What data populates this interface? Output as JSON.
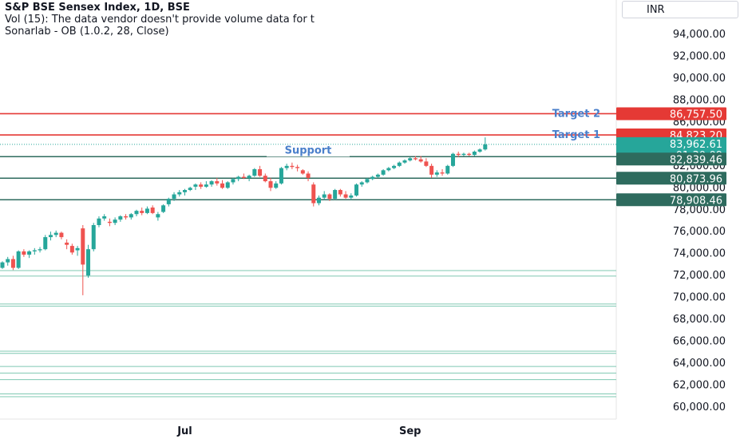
{
  "legend": {
    "title": "S&P BSE Sensex Index, 1D, BSE",
    "volume": "Vol (15): The data vendor doesn't provide volume data for t",
    "indicator": "Sonarlab - OB (1.0.2, 28, Close)"
  },
  "currency": "INR",
  "colors": {
    "up": "#26a69a",
    "down": "#ef5350",
    "target_line": "#e53935",
    "support_line": "#2e6b5e",
    "annotation": "#4a7fcb",
    "ob_zone": "#7fc8b2"
  },
  "y_axis_ticks": [
    "94,000.00",
    "92,000.00",
    "90,000.00",
    "88,000.00",
    "86,000.00",
    "82,000.00",
    "80,000.00",
    "78,000.00",
    "76,000.00",
    "74,000.00",
    "72,000.00",
    "70,000.00",
    "68,000.00",
    "66,000.00",
    "64,000.00",
    "62,000.00",
    "60,000.00"
  ],
  "x_axis_labels": [
    {
      "label": "Jul",
      "index": 34
    },
    {
      "label": "Sep",
      "index": 76
    }
  ],
  "price_badges": {
    "target2": "86,757.50",
    "target1": "84,823.20",
    "current_price": "83,962.61",
    "countdown": "01:30:09",
    "level1": "82,839.46",
    "level2": "80,873.96",
    "level3": "78,908.46"
  },
  "annotations": {
    "target2": "Target 2",
    "target1": "Target 1",
    "support": "Support"
  },
  "chart_data": {
    "type": "candlestick",
    "y_unit": "INR",
    "ylim": [
      59800,
      95500
    ],
    "horizontal_levels": [
      {
        "value": 86757.5,
        "kind": "target"
      },
      {
        "value": 84823.2,
        "kind": "target"
      },
      {
        "value": 82839.46,
        "kind": "support"
      },
      {
        "value": 80873.96,
        "kind": "support"
      },
      {
        "value": 78908.46,
        "kind": "support"
      }
    ],
    "ob_zone_lines": [
      72450,
      71950,
      69400,
      69200,
      65100,
      64900,
      63700,
      63100,
      62500,
      61200,
      60950
    ],
    "candles": [
      [
        72700,
        73300,
        72600,
        73200
      ],
      [
        73200,
        73700,
        72900,
        73500
      ],
      [
        73500,
        73800,
        72500,
        72700
      ],
      [
        72700,
        74300,
        72600,
        74200
      ],
      [
        74200,
        74400,
        73700,
        73900
      ],
      [
        73900,
        74300,
        73600,
        74200
      ],
      [
        74200,
        74500,
        73900,
        74300
      ],
      [
        74300,
        74600,
        74100,
        74400
      ],
      [
        74400,
        75700,
        74300,
        75500
      ],
      [
        75500,
        76000,
        75200,
        75700
      ],
      [
        75700,
        76100,
        75500,
        75900
      ],
      [
        75900,
        76000,
        75300,
        75500
      ],
      [
        75000,
        75300,
        74400,
        74800
      ],
      [
        74700,
        74900,
        73900,
        74100
      ],
      [
        74300,
        74700,
        73800,
        74500
      ],
      [
        76300,
        76600,
        70200,
        73000
      ],
      [
        72000,
        74800,
        71800,
        74400
      ],
      [
        74400,
        76800,
        74200,
        76600
      ],
      [
        76600,
        77400,
        76400,
        77200
      ],
      [
        77200,
        77600,
        77000,
        77400
      ],
      [
        76900,
        77200,
        76500,
        76800
      ],
      [
        76800,
        77300,
        76600,
        77100
      ],
      [
        77100,
        77500,
        76900,
        77400
      ],
      [
        77400,
        77600,
        77100,
        77300
      ],
      [
        77300,
        77700,
        77100,
        77600
      ],
      [
        77600,
        78000,
        77400,
        77900
      ],
      [
        77900,
        78200,
        77500,
        77700
      ],
      [
        77700,
        78300,
        77600,
        78100
      ],
      [
        78200,
        78400,
        77600,
        77700
      ],
      [
        77300,
        77800,
        77000,
        77600
      ],
      [
        77800,
        78500,
        77700,
        78400
      ],
      [
        78500,
        79100,
        78300,
        79000
      ],
      [
        79000,
        79600,
        78800,
        79400
      ],
      [
        79400,
        79800,
        79200,
        79600
      ],
      [
        79600,
        79900,
        79300,
        79800
      ],
      [
        79800,
        80100,
        79700,
        80000
      ],
      [
        80100,
        80400,
        79800,
        80300
      ],
      [
        80300,
        80500,
        79900,
        80100
      ],
      [
        80100,
        80600,
        80000,
        80300
      ],
      [
        80300,
        80700,
        80100,
        80600
      ],
      [
        80600,
        80900,
        80200,
        80400
      ],
      [
        80400,
        80700,
        79900,
        80000
      ],
      [
        80000,
        80600,
        79900,
        80500
      ],
      [
        80500,
        80900,
        80300,
        80800
      ],
      [
        80800,
        81100,
        80600,
        81000
      ],
      [
        81000,
        81300,
        80800,
        80900
      ],
      [
        80900,
        81200,
        80600,
        81100
      ],
      [
        81100,
        81800,
        81000,
        81700
      ],
      [
        81700,
        82000,
        81000,
        81100
      ],
      [
        81100,
        81300,
        80500,
        80600
      ],
      [
        80600,
        80900,
        79700,
        80000
      ],
      [
        80000,
        80600,
        79900,
        80400
      ],
      [
        80400,
        81900,
        80300,
        81800
      ],
      [
        81800,
        82200,
        81600,
        82000
      ],
      [
        82000,
        82300,
        81700,
        81900
      ],
      [
        81900,
        82100,
        81500,
        81800
      ],
      [
        81600,
        81700,
        81200,
        81300
      ],
      [
        81300,
        81500,
        80600,
        80900
      ],
      [
        80300,
        80500,
        78300,
        78600
      ],
      [
        78600,
        79300,
        78400,
        79100
      ],
      [
        79100,
        79700,
        78900,
        79400
      ],
      [
        79400,
        79500,
        78800,
        79000
      ],
      [
        79000,
        79900,
        78900,
        79800
      ],
      [
        79800,
        79900,
        79200,
        79400
      ],
      [
        79400,
        79700,
        79000,
        79100
      ],
      [
        79100,
        79500,
        78900,
        79300
      ],
      [
        79300,
        80400,
        79200,
        80300
      ],
      [
        80300,
        80600,
        80100,
        80500
      ],
      [
        80500,
        80900,
        80400,
        80800
      ],
      [
        80800,
        81100,
        80700,
        81000
      ],
      [
        81000,
        81300,
        80900,
        81200
      ],
      [
        81200,
        81700,
        81100,
        81600
      ],
      [
        81600,
        81900,
        81500,
        81800
      ],
      [
        81800,
        82100,
        81700,
        82000
      ],
      [
        82000,
        82400,
        81900,
        82300
      ],
      [
        82300,
        82600,
        82200,
        82500
      ],
      [
        82500,
        82800,
        82400,
        82700
      ],
      [
        82700,
        82900,
        82500,
        82600
      ],
      [
        82600,
        82900,
        82300,
        82400
      ],
      [
        82400,
        82700,
        81900,
        82000
      ],
      [
        82000,
        82200,
        80900,
        81200
      ],
      [
        81200,
        81600,
        81000,
        81400
      ],
      [
        81400,
        81700,
        81100,
        81300
      ],
      [
        81300,
        82100,
        81200,
        82000
      ],
      [
        82000,
        83200,
        81900,
        83100
      ],
      [
        83100,
        83300,
        82800,
        83000
      ],
      [
        83000,
        83200,
        82900,
        83100
      ],
      [
        83100,
        83200,
        82900,
        83000
      ],
      [
        83000,
        83400,
        82900,
        83300
      ],
      [
        83300,
        83600,
        83200,
        83500
      ],
      [
        83500,
        84600,
        83400,
        83960
      ]
    ]
  }
}
